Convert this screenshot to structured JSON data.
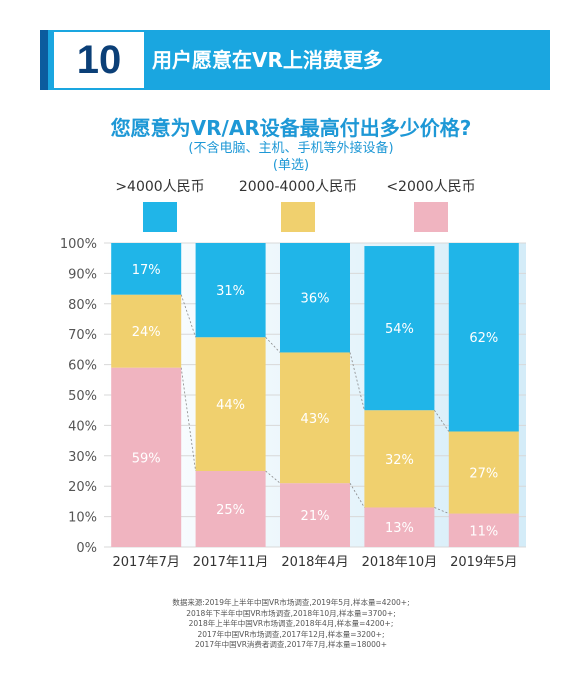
{
  "banner": {
    "number": "10",
    "title": "用户愿意在VR上消费更多"
  },
  "question": {
    "title": "您愿意为VR/AR设备最高付出多少价格?",
    "note": "(不含电脑、主机、手机等外接设备)",
    "mode": "(单选)"
  },
  "colors": {
    "high": "#20b5e8",
    "mid": "#f0d06e",
    "low": "#f0b4c0",
    "banner": "#1aa6e0",
    "title": "#1e98d6"
  },
  "chart_data": {
    "type": "bar",
    "stacked": true,
    "categories": [
      "2017年7月",
      "2017年11月",
      "2018年4月",
      "2018年10月",
      "2019年5月"
    ],
    "series": [
      {
        "name": "<2000人民币",
        "values": [
          59,
          25,
          21,
          13,
          11
        ],
        "labels": [
          "59%",
          "25%",
          "21%",
          "13%",
          "11%"
        ]
      },
      {
        "name": "2000-4000人民币",
        "values": [
          24,
          44,
          43,
          32,
          27
        ],
        "labels": [
          "24%",
          "44%",
          "43%",
          "32%",
          "27%"
        ]
      },
      {
        "name": ">4000人民币",
        "values": [
          17,
          31,
          36,
          54,
          62
        ],
        "labels": [
          "17%",
          "31%",
          "36%",
          "54%",
          "62%"
        ]
      }
    ],
    "legend_order": [
      ">4000人民币",
      "2000-4000人民币",
      "<2000人民币"
    ],
    "yticks": [
      "0%",
      "10%",
      "20%",
      "30%",
      "40%",
      "50%",
      "60%",
      "70%",
      "80%",
      "90%",
      "100%"
    ],
    "ylim": [
      0,
      100
    ],
    "legend": "top"
  },
  "source": [
    "数据来源:2019年上半年中国VR市场调查,2019年5月,样本量=4200+;",
    "2018年下半年中国VR市场调查,2018年10月,样本量=3700+;",
    "2018年上半年中国VR市场调查,2018年4月,样本量=4200+;",
    "2017年中国VR市场调查,2017年12月,样本量=3200+;",
    "2017年中国VR消费者调查,2017年7月,样本量=18000+"
  ]
}
